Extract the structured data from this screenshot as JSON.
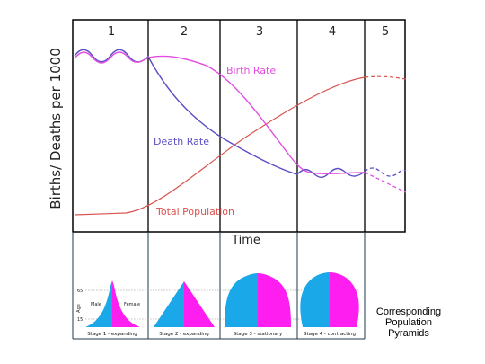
{
  "colors": {
    "birth_rate": "#e24fe0",
    "death_rate": "#5a4fc4",
    "total_population": "#d9534f",
    "male": "#1aa8e8",
    "female": "#ff1ef0",
    "frame": "#000000",
    "divider": "#1e3a4a"
  },
  "chart": {
    "stages": [
      "1",
      "2",
      "3",
      "4",
      "5"
    ],
    "ylabel": "Births/ Deaths per 1000",
    "xlabel": "Time",
    "labels": {
      "birth_rate": "Birth Rate",
      "death_rate": "Death Rate",
      "total_population": "Total Population"
    }
  },
  "pyramids": {
    "age_label": "Age",
    "tick_top": "65",
    "tick_bottom": "15",
    "male_label": "Male",
    "female_label": "Female",
    "captions": [
      "Stage 1 - expanding",
      "Stage 2 - expanding",
      "Stage 3 - stationary",
      "Stage 4 - contracting"
    ]
  },
  "side_caption": {
    "line1": "Corresponding",
    "line2": "Population",
    "line3": "Pyramids"
  }
}
